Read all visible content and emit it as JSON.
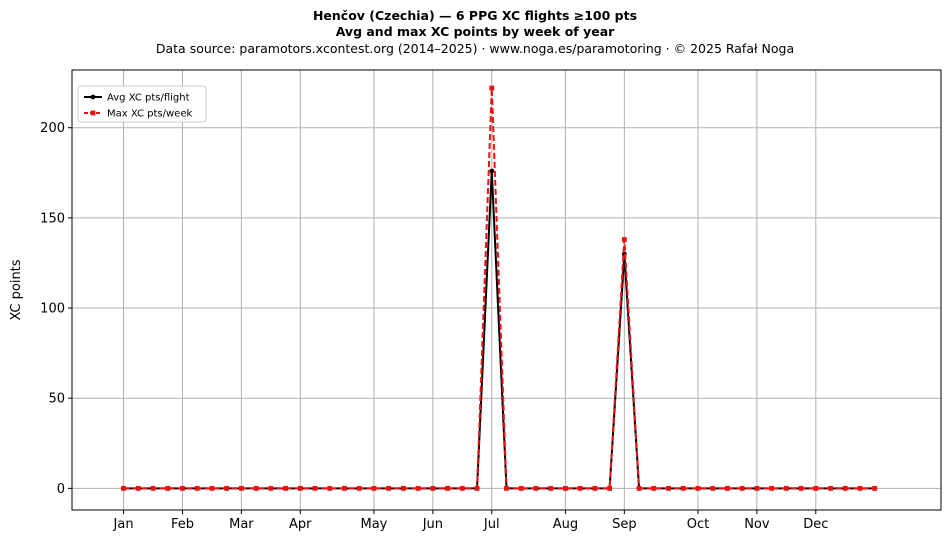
{
  "chart_data": {
    "type": "line",
    "title": "Henčov (Czechia)  —  6 PPG XC flights ≥100 pts",
    "subtitle": "Avg and max XC points by week of year",
    "source": "Data source: paramotors.xcontest.org (2014–2025)  ·  www.noga.es/paramotoring  ·  © 2025 Rafał Noga",
    "xlabel": "",
    "ylabel": "XC points",
    "x_axis": "week of year",
    "xlim": [
      -2.5,
      56.5
    ],
    "ylim": [
      -12,
      232
    ],
    "yticks": [
      0,
      50,
      100,
      150,
      200
    ],
    "month_ticks": [
      {
        "label": "Jan",
        "week": 1
      },
      {
        "label": "Feb",
        "week": 5
      },
      {
        "label": "Mar",
        "week": 9
      },
      {
        "label": "Apr",
        "week": 13
      },
      {
        "label": "May",
        "week": 18
      },
      {
        "label": "Jun",
        "week": 22
      },
      {
        "label": "Jul",
        "week": 26
      },
      {
        "label": "Aug",
        "week": 31
      },
      {
        "label": "Sep",
        "week": 35
      },
      {
        "label": "Oct",
        "week": 40
      },
      {
        "label": "Nov",
        "week": 44
      },
      {
        "label": "Dec",
        "week": 48
      }
    ],
    "grid": true,
    "legend_position": "top-left",
    "weeks": [
      1,
      2,
      3,
      4,
      5,
      6,
      7,
      8,
      9,
      10,
      11,
      12,
      13,
      14,
      15,
      16,
      17,
      18,
      19,
      20,
      21,
      22,
      23,
      24,
      25,
      26,
      27,
      28,
      29,
      30,
      31,
      32,
      33,
      34,
      35,
      36,
      37,
      38,
      39,
      40,
      41,
      42,
      43,
      44,
      45,
      46,
      47,
      48,
      49,
      50,
      51,
      52
    ],
    "series": [
      {
        "name": "Avg XC pts/flight",
        "color": "#000000",
        "style": "solid",
        "marker": "circle",
        "values": [
          0,
          0,
          0,
          0,
          0,
          0,
          0,
          0,
          0,
          0,
          0,
          0,
          0,
          0,
          0,
          0,
          0,
          0,
          0,
          0,
          0,
          0,
          0,
          0,
          0,
          176,
          0,
          0,
          0,
          0,
          0,
          0,
          0,
          0,
          130,
          0,
          0,
          0,
          0,
          0,
          0,
          0,
          0,
          0,
          0,
          0,
          0,
          0,
          0,
          0,
          0,
          0
        ]
      },
      {
        "name": "Max XC pts/week",
        "color": "#ee1111",
        "style": "dashed",
        "marker": "square",
        "values": [
          0,
          0,
          0,
          0,
          0,
          0,
          0,
          0,
          0,
          0,
          0,
          0,
          0,
          0,
          0,
          0,
          0,
          0,
          0,
          0,
          0,
          0,
          0,
          0,
          0,
          222,
          0,
          0,
          0,
          0,
          0,
          0,
          0,
          0,
          138,
          0,
          0,
          0,
          0,
          0,
          0,
          0,
          0,
          0,
          0,
          0,
          0,
          0,
          0,
          0,
          0,
          0
        ]
      }
    ]
  }
}
